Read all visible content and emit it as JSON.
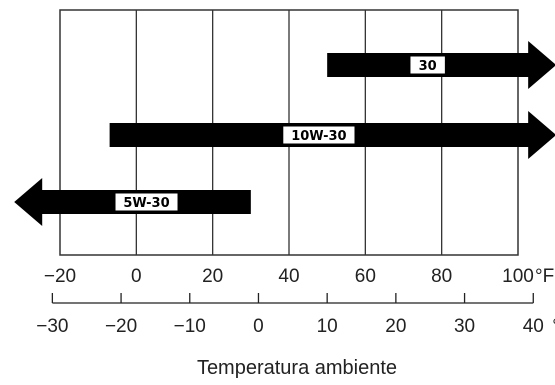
{
  "chart_data": {
    "type": "bar",
    "title": "",
    "xlabel": "Temperatura ambiente",
    "axes": {
      "fahrenheit": {
        "unit": "°F",
        "ticks": [
          -20,
          0,
          20,
          40,
          60,
          80,
          100
        ],
        "tick_labels": [
          "−20",
          "0",
          "20",
          "40",
          "60",
          "80",
          "100"
        ],
        "range": [
          -20,
          100
        ]
      },
      "celsius": {
        "unit": "°C",
        "ticks": [
          -30,
          -20,
          -10,
          0,
          10,
          20,
          30,
          40
        ],
        "tick_labels": [
          "−30",
          "−20",
          "−10",
          "0",
          "10",
          "20",
          "30",
          "40"
        ],
        "range": [
          -30,
          40
        ]
      }
    },
    "series": [
      {
        "label": "30",
        "from_f": 50,
        "to_f": 110,
        "open_low": false,
        "open_high": true
      },
      {
        "label": "10W-30",
        "from_f": -7,
        "to_f": 110,
        "open_low": false,
        "open_high": true
      },
      {
        "label": "5W-30",
        "from_f": -32,
        "to_f": 30,
        "open_low": true,
        "open_high": false
      }
    ],
    "grid": true,
    "colors": {
      "arrow": "#000000",
      "label_bg": "#ffffff",
      "grid": "#333333"
    }
  }
}
